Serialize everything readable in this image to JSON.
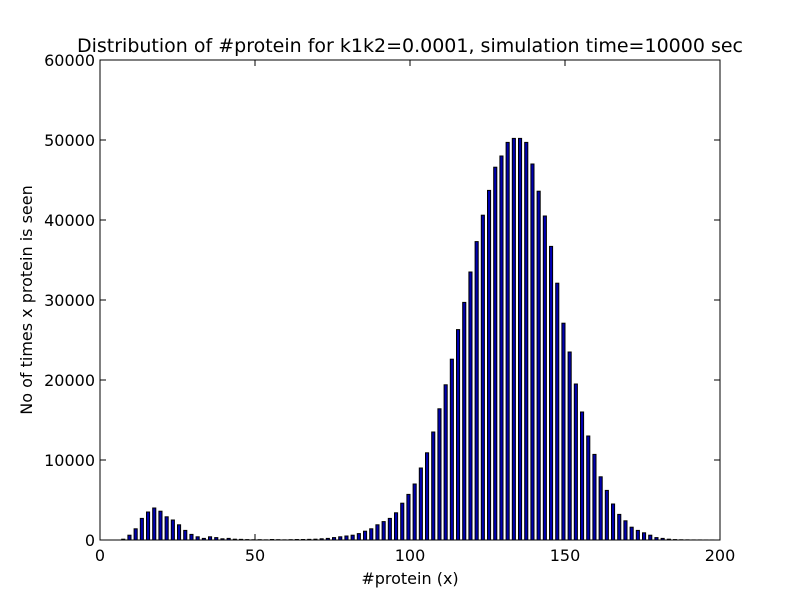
{
  "chart_data": {
    "type": "bar",
    "title": "Distribution of #protein for k1k2=0.0001, simulation time=10000 sec",
    "xlabel": "#protein (x)",
    "ylabel": "No of times x protein is seen",
    "xlim": [
      0,
      200
    ],
    "ylim": [
      0,
      60000
    ],
    "xticks": [
      0,
      50,
      100,
      150,
      200
    ],
    "yticks": [
      0,
      10000,
      20000,
      30000,
      40000,
      50000,
      60000
    ],
    "grid": false,
    "legend": "none",
    "bar_color": "#0000b0",
    "bar_edge_color": "#000000",
    "bar_width": 1,
    "x": [
      7,
      9,
      11,
      13,
      15,
      17,
      19,
      21,
      23,
      25,
      27,
      29,
      31,
      33,
      35,
      37,
      39,
      41,
      43,
      45,
      47,
      49,
      51,
      53,
      55,
      57,
      59,
      61,
      63,
      65,
      67,
      69,
      71,
      73,
      75,
      77,
      79,
      81,
      83,
      85,
      87,
      89,
      91,
      93,
      95,
      97,
      99,
      101,
      103,
      105,
      107,
      109,
      111,
      113,
      115,
      117,
      119,
      121,
      123,
      125,
      127,
      129,
      131,
      133,
      135,
      137,
      139,
      141,
      143,
      145,
      147,
      149,
      151,
      153,
      155,
      157,
      159,
      161,
      163,
      165,
      167,
      169,
      171,
      173,
      175,
      177,
      179,
      181,
      183,
      185,
      187,
      189,
      191,
      193,
      195,
      197
    ],
    "values": [
      100,
      600,
      1400,
      2700,
      3500,
      4000,
      3600,
      2900,
      2500,
      1900,
      1200,
      700,
      400,
      200,
      400,
      300,
      150,
      200,
      100,
      80,
      50,
      30,
      40,
      20,
      60,
      40,
      20,
      40,
      60,
      60,
      80,
      100,
      150,
      200,
      300,
      400,
      500,
      600,
      800,
      1100,
      1400,
      1900,
      2300,
      2700,
      3400,
      4600,
      5700,
      7000,
      9000,
      10900,
      13500,
      16400,
      19400,
      22600,
      26300,
      29700,
      33500,
      37300,
      40600,
      43700,
      46600,
      48000,
      49700,
      50200,
      50200,
      49700,
      47000,
      43600,
      40500,
      36700,
      32100,
      27100,
      23500,
      19500,
      16000,
      13000,
      10700,
      7900,
      6200,
      4500,
      3200,
      2400,
      1600,
      1200,
      900,
      600,
      300,
      200,
      100,
      50,
      30,
      20,
      10,
      10,
      5,
      5
    ]
  }
}
